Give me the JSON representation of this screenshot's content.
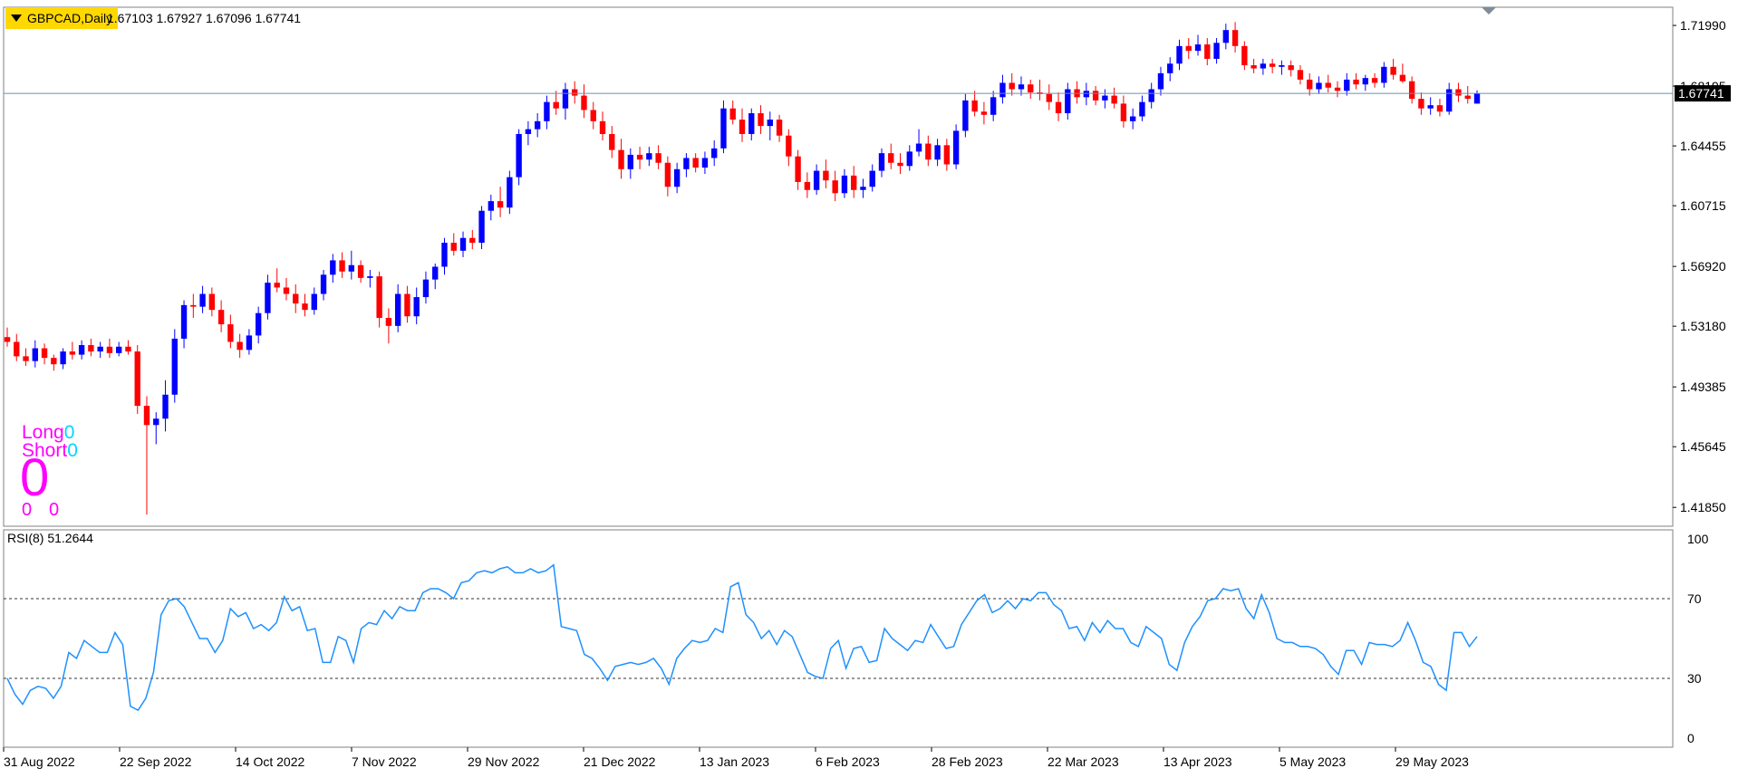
{
  "header": {
    "symbol_label": "GBPCAD,Daily",
    "ohlc": "1.67103 1.67927 1.67096 1.67741"
  },
  "colors": {
    "bull": "#0000ff",
    "bear": "#ff0000",
    "rsi_line": "#1e90ff",
    "label_bg": "#ffd800",
    "panel_border": "#808080",
    "price_line": "#6e8fb0",
    "overlay_text": "#ff00ff",
    "overlay_value": "#00d8ff"
  },
  "overlay": {
    "long_label": "Long",
    "long_value": "0",
    "short_label": "Short",
    "short_value": "0",
    "big_value": "0",
    "small_left": "0",
    "small_right": "0"
  },
  "indicator": {
    "title": "RSI(8) 51.2644",
    "levels": [
      "100",
      "70",
      "30",
      "0"
    ]
  },
  "chart_data": [
    {
      "type": "candlestick",
      "price_axis_labels": [
        "1.71990",
        "1.68195",
        "1.64455",
        "1.60715",
        "1.56920",
        "1.53180",
        "1.49385",
        "1.45645",
        "1.41850"
      ],
      "ylim": [
        1.409,
        1.729
      ],
      "current_price": "1.67741",
      "date_labels": [
        "31 Aug 2022",
        "22 Sep 2022",
        "14 Oct 2022",
        "7 Nov 2022",
        "29 Nov 2022",
        "21 Dec 2022",
        "13 Jan 2023",
        "6 Feb 2023",
        "28 Feb 2023",
        "22 Mar 2023",
        "13 Apr 2023",
        "5 May 2023",
        "29 May 2023"
      ],
      "candles": [
        [
          1.525,
          1.531,
          1.519,
          1.522
        ],
        [
          1.522,
          1.527,
          1.51,
          1.513
        ],
        [
          1.513,
          1.518,
          1.507,
          1.51
        ],
        [
          1.51,
          1.523,
          1.506,
          1.518
        ],
        [
          1.518,
          1.521,
          1.508,
          1.512
        ],
        [
          1.512,
          1.514,
          1.504,
          1.508
        ],
        [
          1.508,
          1.518,
          1.505,
          1.516
        ],
        [
          1.516,
          1.522,
          1.511,
          1.514
        ],
        [
          1.514,
          1.523,
          1.511,
          1.52
        ],
        [
          1.52,
          1.524,
          1.513,
          1.516
        ],
        [
          1.516,
          1.522,
          1.512,
          1.519
        ],
        [
          1.519,
          1.524,
          1.512,
          1.515
        ],
        [
          1.515,
          1.522,
          1.513,
          1.519
        ],
        [
          1.519,
          1.523,
          1.514,
          1.516
        ],
        [
          1.516,
          1.52,
          1.477,
          1.482
        ],
        [
          1.482,
          1.488,
          1.414,
          1.47
        ],
        [
          1.47,
          1.478,
          1.458,
          1.474
        ],
        [
          1.474,
          1.498,
          1.466,
          1.489
        ],
        [
          1.489,
          1.53,
          1.484,
          1.524
        ],
        [
          1.524,
          1.548,
          1.518,
          1.545
        ],
        [
          1.545,
          1.552,
          1.537,
          1.544
        ],
        [
          1.544,
          1.557,
          1.54,
          1.552
        ],
        [
          1.552,
          1.556,
          1.538,
          1.542
        ],
        [
          1.542,
          1.548,
          1.528,
          1.533
        ],
        [
          1.533,
          1.539,
          1.518,
          1.522
        ],
        [
          1.522,
          1.527,
          1.512,
          1.517
        ],
        [
          1.517,
          1.53,
          1.514,
          1.526
        ],
        [
          1.526,
          1.544,
          1.521,
          1.54
        ],
        [
          1.54,
          1.564,
          1.536,
          1.559
        ],
        [
          1.559,
          1.568,
          1.553,
          1.556
        ],
        [
          1.556,
          1.562,
          1.548,
          1.552
        ],
        [
          1.552,
          1.558,
          1.54,
          1.546
        ],
        [
          1.546,
          1.552,
          1.538,
          1.542
        ],
        [
          1.542,
          1.556,
          1.539,
          1.552
        ],
        [
          1.552,
          1.567,
          1.548,
          1.564
        ],
        [
          1.564,
          1.577,
          1.559,
          1.573
        ],
        [
          1.573,
          1.578,
          1.562,
          1.566
        ],
        [
          1.566,
          1.579,
          1.561,
          1.57
        ],
        [
          1.57,
          1.573,
          1.559,
          1.562
        ],
        [
          1.562,
          1.567,
          1.556,
          1.563
        ],
        [
          1.563,
          1.566,
          1.531,
          1.537
        ],
        [
          1.537,
          1.543,
          1.521,
          1.532
        ],
        [
          1.532,
          1.558,
          1.528,
          1.552
        ],
        [
          1.552,
          1.557,
          1.534,
          1.538
        ],
        [
          1.538,
          1.556,
          1.533,
          1.55
        ],
        [
          1.55,
          1.566,
          1.546,
          1.561
        ],
        [
          1.561,
          1.571,
          1.555,
          1.569
        ],
        [
          1.569,
          1.587,
          1.564,
          1.584
        ],
        [
          1.584,
          1.59,
          1.576,
          1.579
        ],
        [
          1.579,
          1.591,
          1.575,
          1.587
        ],
        [
          1.587,
          1.592,
          1.58,
          1.584
        ],
        [
          1.584,
          1.607,
          1.58,
          1.604
        ],
        [
          1.604,
          1.614,
          1.598,
          1.61
        ],
        [
          1.61,
          1.619,
          1.6,
          1.606
        ],
        [
          1.606,
          1.629,
          1.602,
          1.625
        ],
        [
          1.625,
          1.655,
          1.62,
          1.652
        ],
        [
          1.652,
          1.66,
          1.645,
          1.655
        ],
        [
          1.655,
          1.665,
          1.65,
          1.66
        ],
        [
          1.66,
          1.676,
          1.655,
          1.672
        ],
        [
          1.672,
          1.679,
          1.664,
          1.668
        ],
        [
          1.668,
          1.684,
          1.661,
          1.68
        ],
        [
          1.68,
          1.685,
          1.671,
          1.676
        ],
        [
          1.676,
          1.683,
          1.662,
          1.667
        ],
        [
          1.667,
          1.672,
          1.655,
          1.66
        ],
        [
          1.66,
          1.666,
          1.648,
          1.652
        ],
        [
          1.652,
          1.657,
          1.637,
          1.642
        ],
        [
          1.642,
          1.649,
          1.624,
          1.63
        ],
        [
          1.63,
          1.643,
          1.624,
          1.639
        ],
        [
          1.639,
          1.644,
          1.63,
          1.636
        ],
        [
          1.636,
          1.644,
          1.632,
          1.64
        ],
        [
          1.64,
          1.645,
          1.63,
          1.634
        ],
        [
          1.634,
          1.638,
          1.613,
          1.619
        ],
        [
          1.619,
          1.634,
          1.615,
          1.63
        ],
        [
          1.63,
          1.64,
          1.625,
          1.637
        ],
        [
          1.637,
          1.64,
          1.628,
          1.631
        ],
        [
          1.631,
          1.641,
          1.627,
          1.637
        ],
        [
          1.637,
          1.648,
          1.632,
          1.643
        ],
        [
          1.643,
          1.673,
          1.64,
          1.668
        ],
        [
          1.668,
          1.673,
          1.658,
          1.661
        ],
        [
          1.661,
          1.668,
          1.647,
          1.652
        ],
        [
          1.652,
          1.668,
          1.648,
          1.665
        ],
        [
          1.665,
          1.67,
          1.652,
          1.657
        ],
        [
          1.657,
          1.666,
          1.648,
          1.661
        ],
        [
          1.661,
          1.664,
          1.647,
          1.651
        ],
        [
          1.651,
          1.655,
          1.632,
          1.638
        ],
        [
          1.638,
          1.642,
          1.617,
          1.622
        ],
        [
          1.622,
          1.628,
          1.612,
          1.617
        ],
        [
          1.617,
          1.633,
          1.614,
          1.629
        ],
        [
          1.629,
          1.636,
          1.618,
          1.623
        ],
        [
          1.623,
          1.629,
          1.61,
          1.615
        ],
        [
          1.615,
          1.63,
          1.612,
          1.626
        ],
        [
          1.626,
          1.632,
          1.612,
          1.617
        ],
        [
          1.617,
          1.624,
          1.612,
          1.619
        ],
        [
          1.619,
          1.633,
          1.616,
          1.629
        ],
        [
          1.629,
          1.643,
          1.625,
          1.64
        ],
        [
          1.64,
          1.646,
          1.63,
          1.634
        ],
        [
          1.634,
          1.64,
          1.627,
          1.632
        ],
        [
          1.632,
          1.645,
          1.629,
          1.641
        ],
        [
          1.641,
          1.655,
          1.638,
          1.646
        ],
        [
          1.646,
          1.651,
          1.632,
          1.636
        ],
        [
          1.636,
          1.649,
          1.632,
          1.645
        ],
        [
          1.645,
          1.649,
          1.629,
          1.633
        ],
        [
          1.633,
          1.658,
          1.63,
          1.654
        ],
        [
          1.654,
          1.677,
          1.65,
          1.673
        ],
        [
          1.673,
          1.679,
          1.663,
          1.666
        ],
        [
          1.666,
          1.672,
          1.658,
          1.664
        ],
        [
          1.664,
          1.679,
          1.66,
          1.675
        ],
        [
          1.675,
          1.689,
          1.671,
          1.684
        ],
        [
          1.684,
          1.69,
          1.676,
          1.68
        ],
        [
          1.68,
          1.688,
          1.676,
          1.683
        ],
        [
          1.683,
          1.686,
          1.674,
          1.678
        ],
        [
          1.678,
          1.686,
          1.673,
          1.677
        ],
        [
          1.677,
          1.683,
          1.667,
          1.672
        ],
        [
          1.672,
          1.678,
          1.66,
          1.665
        ],
        [
          1.665,
          1.684,
          1.661,
          1.68
        ],
        [
          1.68,
          1.685,
          1.671,
          1.675
        ],
        [
          1.675,
          1.684,
          1.67,
          1.679
        ],
        [
          1.679,
          1.682,
          1.67,
          1.673
        ],
        [
          1.673,
          1.68,
          1.668,
          1.676
        ],
        [
          1.676,
          1.681,
          1.668,
          1.671
        ],
        [
          1.671,
          1.676,
          1.656,
          1.66
        ],
        [
          1.66,
          1.668,
          1.655,
          1.663
        ],
        [
          1.663,
          1.676,
          1.66,
          1.672
        ],
        [
          1.672,
          1.684,
          1.668,
          1.68
        ],
        [
          1.68,
          1.694,
          1.676,
          1.69
        ],
        [
          1.69,
          1.7,
          1.685,
          1.696
        ],
        [
          1.696,
          1.711,
          1.692,
          1.707
        ],
        [
          1.707,
          1.712,
          1.699,
          1.704
        ],
        [
          1.704,
          1.714,
          1.701,
          1.708
        ],
        [
          1.708,
          1.712,
          1.695,
          1.699
        ],
        [
          1.699,
          1.712,
          1.696,
          1.709
        ],
        [
          1.709,
          1.721,
          1.705,
          1.717
        ],
        [
          1.717,
          1.722,
          1.703,
          1.707
        ],
        [
          1.707,
          1.71,
          1.692,
          1.695
        ],
        [
          1.695,
          1.699,
          1.69,
          1.693
        ],
        [
          1.693,
          1.699,
          1.689,
          1.696
        ],
        [
          1.696,
          1.699,
          1.69,
          1.694
        ],
        [
          1.694,
          1.698,
          1.689,
          1.695
        ],
        [
          1.695,
          1.698,
          1.688,
          1.692
        ],
        [
          1.692,
          1.695,
          1.683,
          1.686
        ],
        [
          1.686,
          1.69,
          1.676,
          1.68
        ],
        [
          1.68,
          1.688,
          1.677,
          1.684
        ],
        [
          1.684,
          1.689,
          1.678,
          1.681
        ],
        [
          1.681,
          1.685,
          1.675,
          1.679
        ],
        [
          1.679,
          1.69,
          1.676,
          1.686
        ],
        [
          1.686,
          1.69,
          1.68,
          1.683
        ],
        [
          1.683,
          1.689,
          1.679,
          1.687
        ],
        [
          1.687,
          1.69,
          1.681,
          1.684
        ],
        [
          1.684,
          1.697,
          1.681,
          1.694
        ],
        [
          1.694,
          1.699,
          1.686,
          1.689
        ],
        [
          1.689,
          1.696,
          1.684,
          1.685
        ],
        [
          1.685,
          1.688,
          1.671,
          1.674
        ],
        [
          1.674,
          1.678,
          1.664,
          1.668
        ],
        [
          1.668,
          1.675,
          1.664,
          1.67
        ],
        [
          1.67,
          1.674,
          1.663,
          1.666
        ],
        [
          1.666,
          1.684,
          1.664,
          1.68
        ],
        [
          1.68,
          1.684,
          1.672,
          1.676
        ],
        [
          1.676,
          1.682,
          1.671,
          1.674
        ],
        [
          1.671,
          1.6793,
          1.671,
          1.6774
        ]
      ],
      "price_line": 1.67741
    },
    {
      "type": "line",
      "title": "RSI(8) 51.2644",
      "ylim": [
        0,
        100
      ],
      "levels": [
        70,
        30
      ],
      "values": [
        30,
        22,
        17,
        24,
        26,
        25,
        20,
        26,
        43,
        40,
        49,
        46,
        43,
        43,
        53,
        47,
        16,
        14,
        20,
        33,
        62,
        69,
        70,
        66,
        58,
        50,
        50,
        43,
        49,
        65,
        61,
        63,
        55,
        57,
        54,
        58,
        71,
        64,
        66,
        54,
        55,
        38,
        38,
        51,
        49,
        38,
        55,
        58,
        57,
        64,
        60,
        66,
        64,
        64,
        73,
        75,
        75,
        73,
        70,
        78,
        79,
        83,
        84,
        83,
        85,
        86,
        83,
        83,
        85,
        83,
        84,
        87,
        56,
        55,
        54,
        42,
        40,
        35,
        29,
        36,
        37,
        38,
        37,
        38,
        40,
        35,
        27,
        40,
        45,
        49,
        48,
        49,
        55,
        53,
        76,
        78,
        62,
        58,
        50,
        54,
        47,
        54,
        51,
        42,
        33,
        31,
        30,
        45,
        49,
        35,
        45,
        46,
        38,
        39,
        55,
        50,
        47,
        44,
        49,
        48,
        57,
        51,
        45,
        46,
        57,
        63,
        69,
        72,
        63,
        65,
        69,
        65,
        70,
        69,
        73,
        73,
        67,
        64,
        55,
        56,
        49,
        58,
        53,
        59,
        55,
        55,
        48,
        46,
        56,
        53,
        50,
        37,
        34,
        48,
        56,
        61,
        69,
        70,
        75,
        74,
        75,
        65,
        60,
        72,
        63,
        50,
        48,
        48,
        46,
        46,
        45,
        42,
        36,
        32,
        44,
        44,
        37,
        48,
        47,
        47,
        46,
        49,
        58,
        49,
        38,
        36,
        27,
        24,
        53,
        53,
        46,
        51
      ]
    }
  ]
}
